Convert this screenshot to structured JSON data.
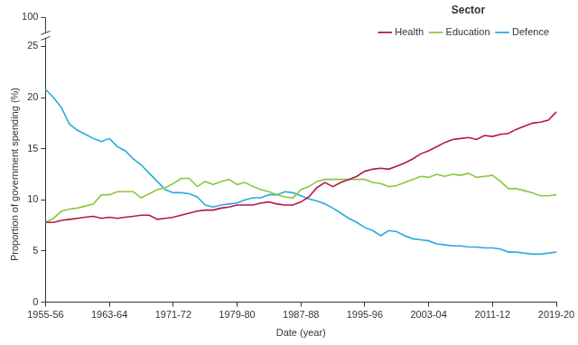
{
  "chart_data": {
    "type": "line",
    "x_label": "Date (year)",
    "y_label": "Proportion of government spending (%)",
    "legend_title": "Sector",
    "legend": "upper right",
    "grid": false,
    "annotations": [
      "100"
    ],
    "categories": [
      "1955-56",
      null,
      null,
      null,
      null,
      null,
      null,
      null,
      "1963-64",
      null,
      null,
      null,
      null,
      null,
      null,
      null,
      "1971-72",
      null,
      null,
      null,
      null,
      null,
      null,
      null,
      "1979-80",
      null,
      null,
      null,
      null,
      null,
      null,
      null,
      "1987-88",
      null,
      null,
      null,
      null,
      null,
      null,
      null,
      "1995-96",
      null,
      null,
      null,
      null,
      null,
      null,
      null,
      "2003-04",
      null,
      null,
      null,
      null,
      null,
      null,
      null,
      "2011-12",
      null,
      null,
      null,
      null,
      null,
      null,
      null,
      "2019-20"
    ],
    "ylim": [
      0,
      25
    ],
    "yticks": [
      0,
      5,
      10,
      15,
      20,
      25
    ],
    "series": [
      {
        "name": "Health",
        "color": "#b5164b",
        "values": [
          7.8,
          7.8,
          8.0,
          8.1,
          8.2,
          8.3,
          8.4,
          8.2,
          8.3,
          8.2,
          8.3,
          8.4,
          8.5,
          8.5,
          8.1,
          8.2,
          8.3,
          8.5,
          8.7,
          8.9,
          9.0,
          9.0,
          9.2,
          9.3,
          9.5,
          9.5,
          9.5,
          9.7,
          9.8,
          9.6,
          9.5,
          9.5,
          9.8,
          10.3,
          11.2,
          11.7,
          11.3,
          11.7,
          12.0,
          12.3,
          12.8,
          13.0,
          13.1,
          13.0,
          13.3,
          13.6,
          14.0,
          14.5,
          14.8,
          15.2,
          15.6,
          15.9,
          16.0,
          16.1,
          15.9,
          16.3,
          16.2,
          16.4,
          16.5,
          16.9,
          17.2,
          17.5,
          17.6,
          17.8,
          18.6
        ]
      },
      {
        "name": "Education",
        "color": "#8dc63f",
        "values": [
          7.8,
          8.2,
          8.9,
          9.1,
          9.2,
          9.4,
          9.6,
          10.5,
          10.5,
          10.8,
          10.8,
          10.8,
          10.2,
          10.6,
          11.0,
          11.2,
          11.6,
          12.1,
          12.1,
          11.3,
          11.8,
          11.5,
          11.8,
          12.0,
          11.5,
          11.7,
          11.3,
          11.0,
          10.8,
          10.5,
          10.3,
          10.2,
          11.0,
          11.3,
          11.8,
          12.0,
          12.0,
          12.0,
          12.0,
          12.0,
          12.0,
          11.7,
          11.6,
          11.3,
          11.4,
          11.7,
          12.0,
          12.3,
          12.2,
          12.5,
          12.3,
          12.5,
          12.4,
          12.6,
          12.2,
          12.3,
          12.4,
          11.8,
          11.1,
          11.1,
          10.9,
          10.7,
          10.4,
          10.4,
          10.5
        ]
      },
      {
        "name": "Defence",
        "color": "#29a9df",
        "values": [
          20.8,
          20.0,
          19.0,
          17.4,
          16.8,
          16.4,
          16.0,
          15.7,
          16.0,
          15.2,
          14.8,
          14.0,
          13.4,
          12.6,
          11.8,
          11.0,
          10.7,
          10.7,
          10.6,
          10.3,
          9.5,
          9.3,
          9.5,
          9.6,
          9.7,
          10.0,
          10.2,
          10.2,
          10.5,
          10.5,
          10.8,
          10.7,
          10.4,
          10.1,
          9.9,
          9.6,
          9.2,
          8.7,
          8.2,
          7.8,
          7.3,
          7.0,
          6.5,
          7.0,
          6.9,
          6.5,
          6.2,
          6.1,
          6.0,
          5.7,
          5.6,
          5.5,
          5.5,
          5.4,
          5.4,
          5.3,
          5.3,
          5.2,
          4.9,
          4.9,
          4.8,
          4.7,
          4.7,
          4.8,
          4.9
        ]
      }
    ]
  }
}
